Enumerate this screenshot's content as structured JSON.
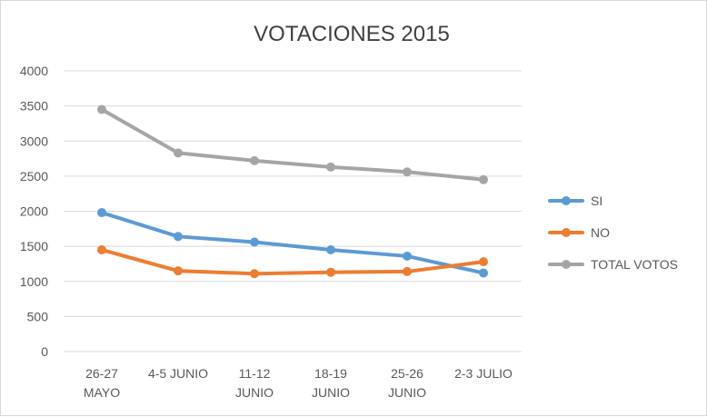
{
  "chart_data": {
    "type": "line",
    "title": "VOTACIONES 2015",
    "categories": [
      [
        "26-27",
        "MAYO"
      ],
      [
        "4-5 JUNIO"
      ],
      [
        "11-12",
        "JUNIO"
      ],
      [
        "18-19",
        "JUNIO"
      ],
      [
        "25-26",
        "JUNIO"
      ],
      [
        "2-3 JULIO"
      ]
    ],
    "ylim": [
      0,
      4000
    ],
    "yticks": [
      "0",
      "500",
      "1000",
      "1500",
      "2000",
      "2500",
      "3000",
      "3500",
      "4000"
    ],
    "grid": true,
    "legend_position": "right",
    "series": [
      {
        "name": "SI",
        "color": "#5b9bd5",
        "values": [
          1980,
          1640,
          1560,
          1450,
          1360,
          1120
        ]
      },
      {
        "name": "NO",
        "color": "#ed7d31",
        "values": [
          1450,
          1150,
          1110,
          1130,
          1140,
          1280
        ]
      },
      {
        "name": "TOTAL VOTOS",
        "color": "#a5a5a5",
        "values": [
          3450,
          2830,
          2720,
          2630,
          2560,
          2450
        ]
      }
    ]
  }
}
